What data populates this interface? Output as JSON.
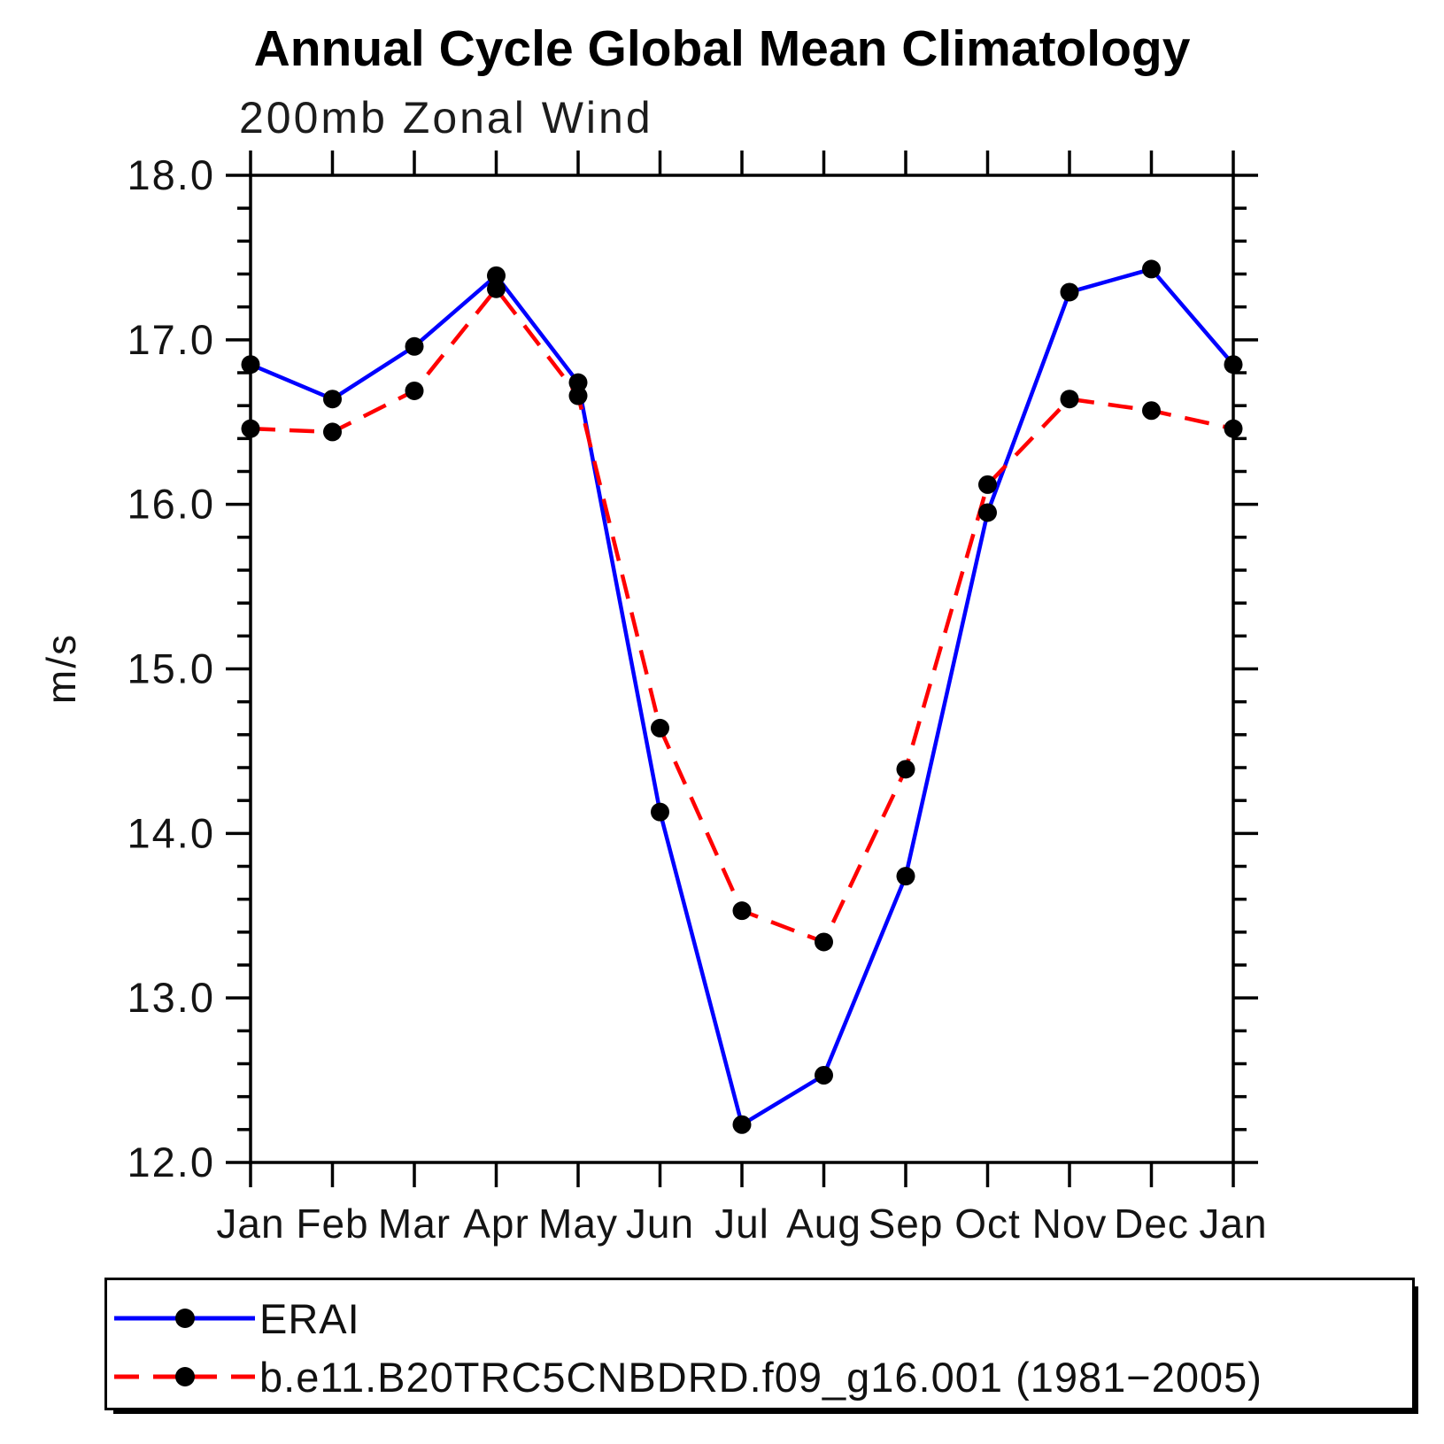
{
  "chart_data": {
    "type": "line",
    "title": "Annual Cycle Global Mean Climatology",
    "subtitle": "200mb Zonal Wind",
    "ylabel": "m/s",
    "categories": [
      "Jan",
      "Feb",
      "Mar",
      "Apr",
      "May",
      "Jun",
      "Jul",
      "Aug",
      "Sep",
      "Oct",
      "Nov",
      "Dec",
      "Jan"
    ],
    "ylim": [
      12.0,
      18.0
    ],
    "ytick_major": [
      18.0,
      17.0,
      16.0,
      15.0,
      14.0,
      13.0,
      12.0
    ],
    "ytick_minor_step": 0.2,
    "grid": false,
    "legend_position": "bottom-left",
    "series": [
      {
        "name": "ERAI",
        "color": "#0000ff",
        "linestyle": "solid",
        "marker": "circle",
        "marker_color": "#000000",
        "values": [
          16.85,
          16.64,
          16.96,
          17.39,
          16.74,
          14.13,
          12.23,
          12.53,
          13.74,
          15.95,
          17.29,
          17.43,
          16.85
        ]
      },
      {
        "name": "b.e11.B20TRC5CNBDRD.f09_g16.001 (1981−2005)",
        "color": "#ff0000",
        "linestyle": "dashed",
        "marker": "circle",
        "marker_color": "#000000",
        "values": [
          16.46,
          16.44,
          16.69,
          17.31,
          16.66,
          14.64,
          13.53,
          13.34,
          14.39,
          16.12,
          16.64,
          16.57,
          16.46
        ]
      }
    ]
  }
}
